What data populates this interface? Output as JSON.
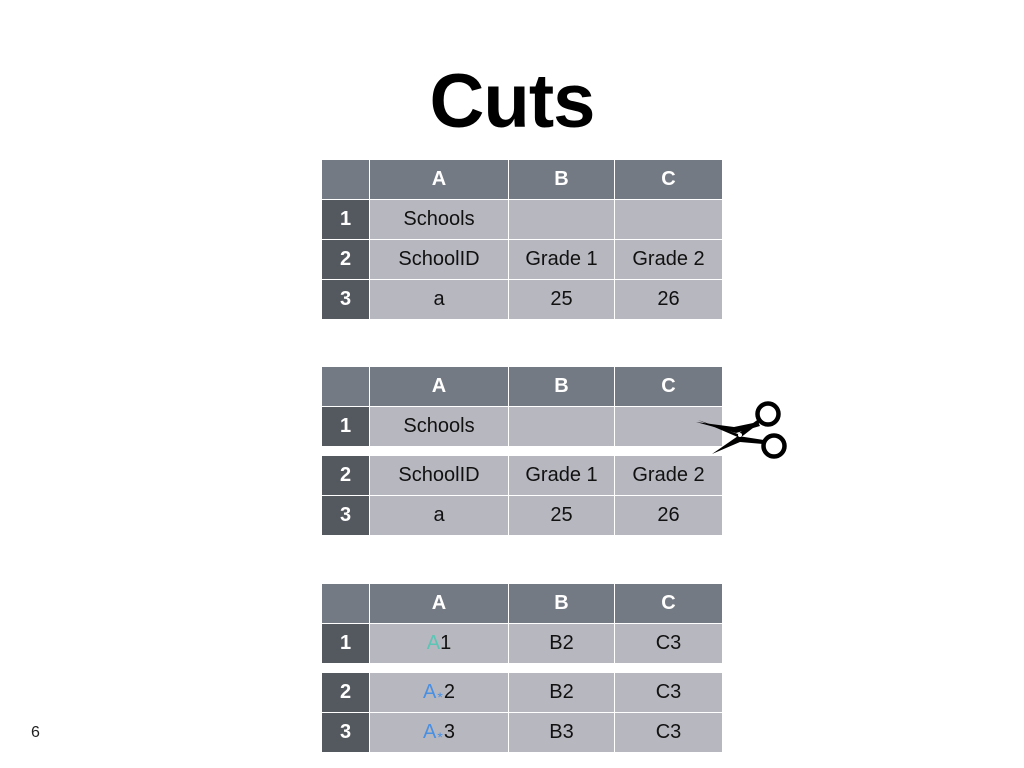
{
  "slide": {
    "title": "Cuts",
    "page_number": "6"
  },
  "columns": [
    "A",
    "B",
    "C"
  ],
  "table1": {
    "rows": [
      {
        "num": "1",
        "a": "Schools",
        "b": "",
        "c": ""
      },
      {
        "num": "2",
        "a": "SchoolID",
        "b": "Grade 1",
        "c": "Grade 2"
      },
      {
        "num": "3",
        "a": "a",
        "b": "25",
        "c": "26"
      }
    ]
  },
  "table2": {
    "rows": [
      {
        "num": "1",
        "a": "Schools",
        "b": "",
        "c": ""
      },
      {
        "num": "2",
        "a": "SchoolID",
        "b": "Grade 1",
        "c": "Grade 2"
      },
      {
        "num": "3",
        "a": "a",
        "b": "25",
        "c": "26"
      }
    ]
  },
  "table3": {
    "rows": [
      {
        "num": "1",
        "a_prefix": "A",
        "a_star": "",
        "a_suffix": "1",
        "b": "B2",
        "c": "C3"
      },
      {
        "num": "2",
        "a_prefix": "A",
        "a_star": "*",
        "a_suffix": "2",
        "b": "B2",
        "c": "C3"
      },
      {
        "num": "3",
        "a_prefix": "A",
        "a_star": "*",
        "a_suffix": "3",
        "b": "B3",
        "c": "C3"
      }
    ]
  },
  "icons": {
    "cut": "scissors-icon"
  },
  "colors": {
    "header": "#747a83",
    "row_header": "#54585f",
    "cell": "#b7b7c0",
    "teal": "#5dc5b5",
    "blue": "#4a90e2"
  }
}
